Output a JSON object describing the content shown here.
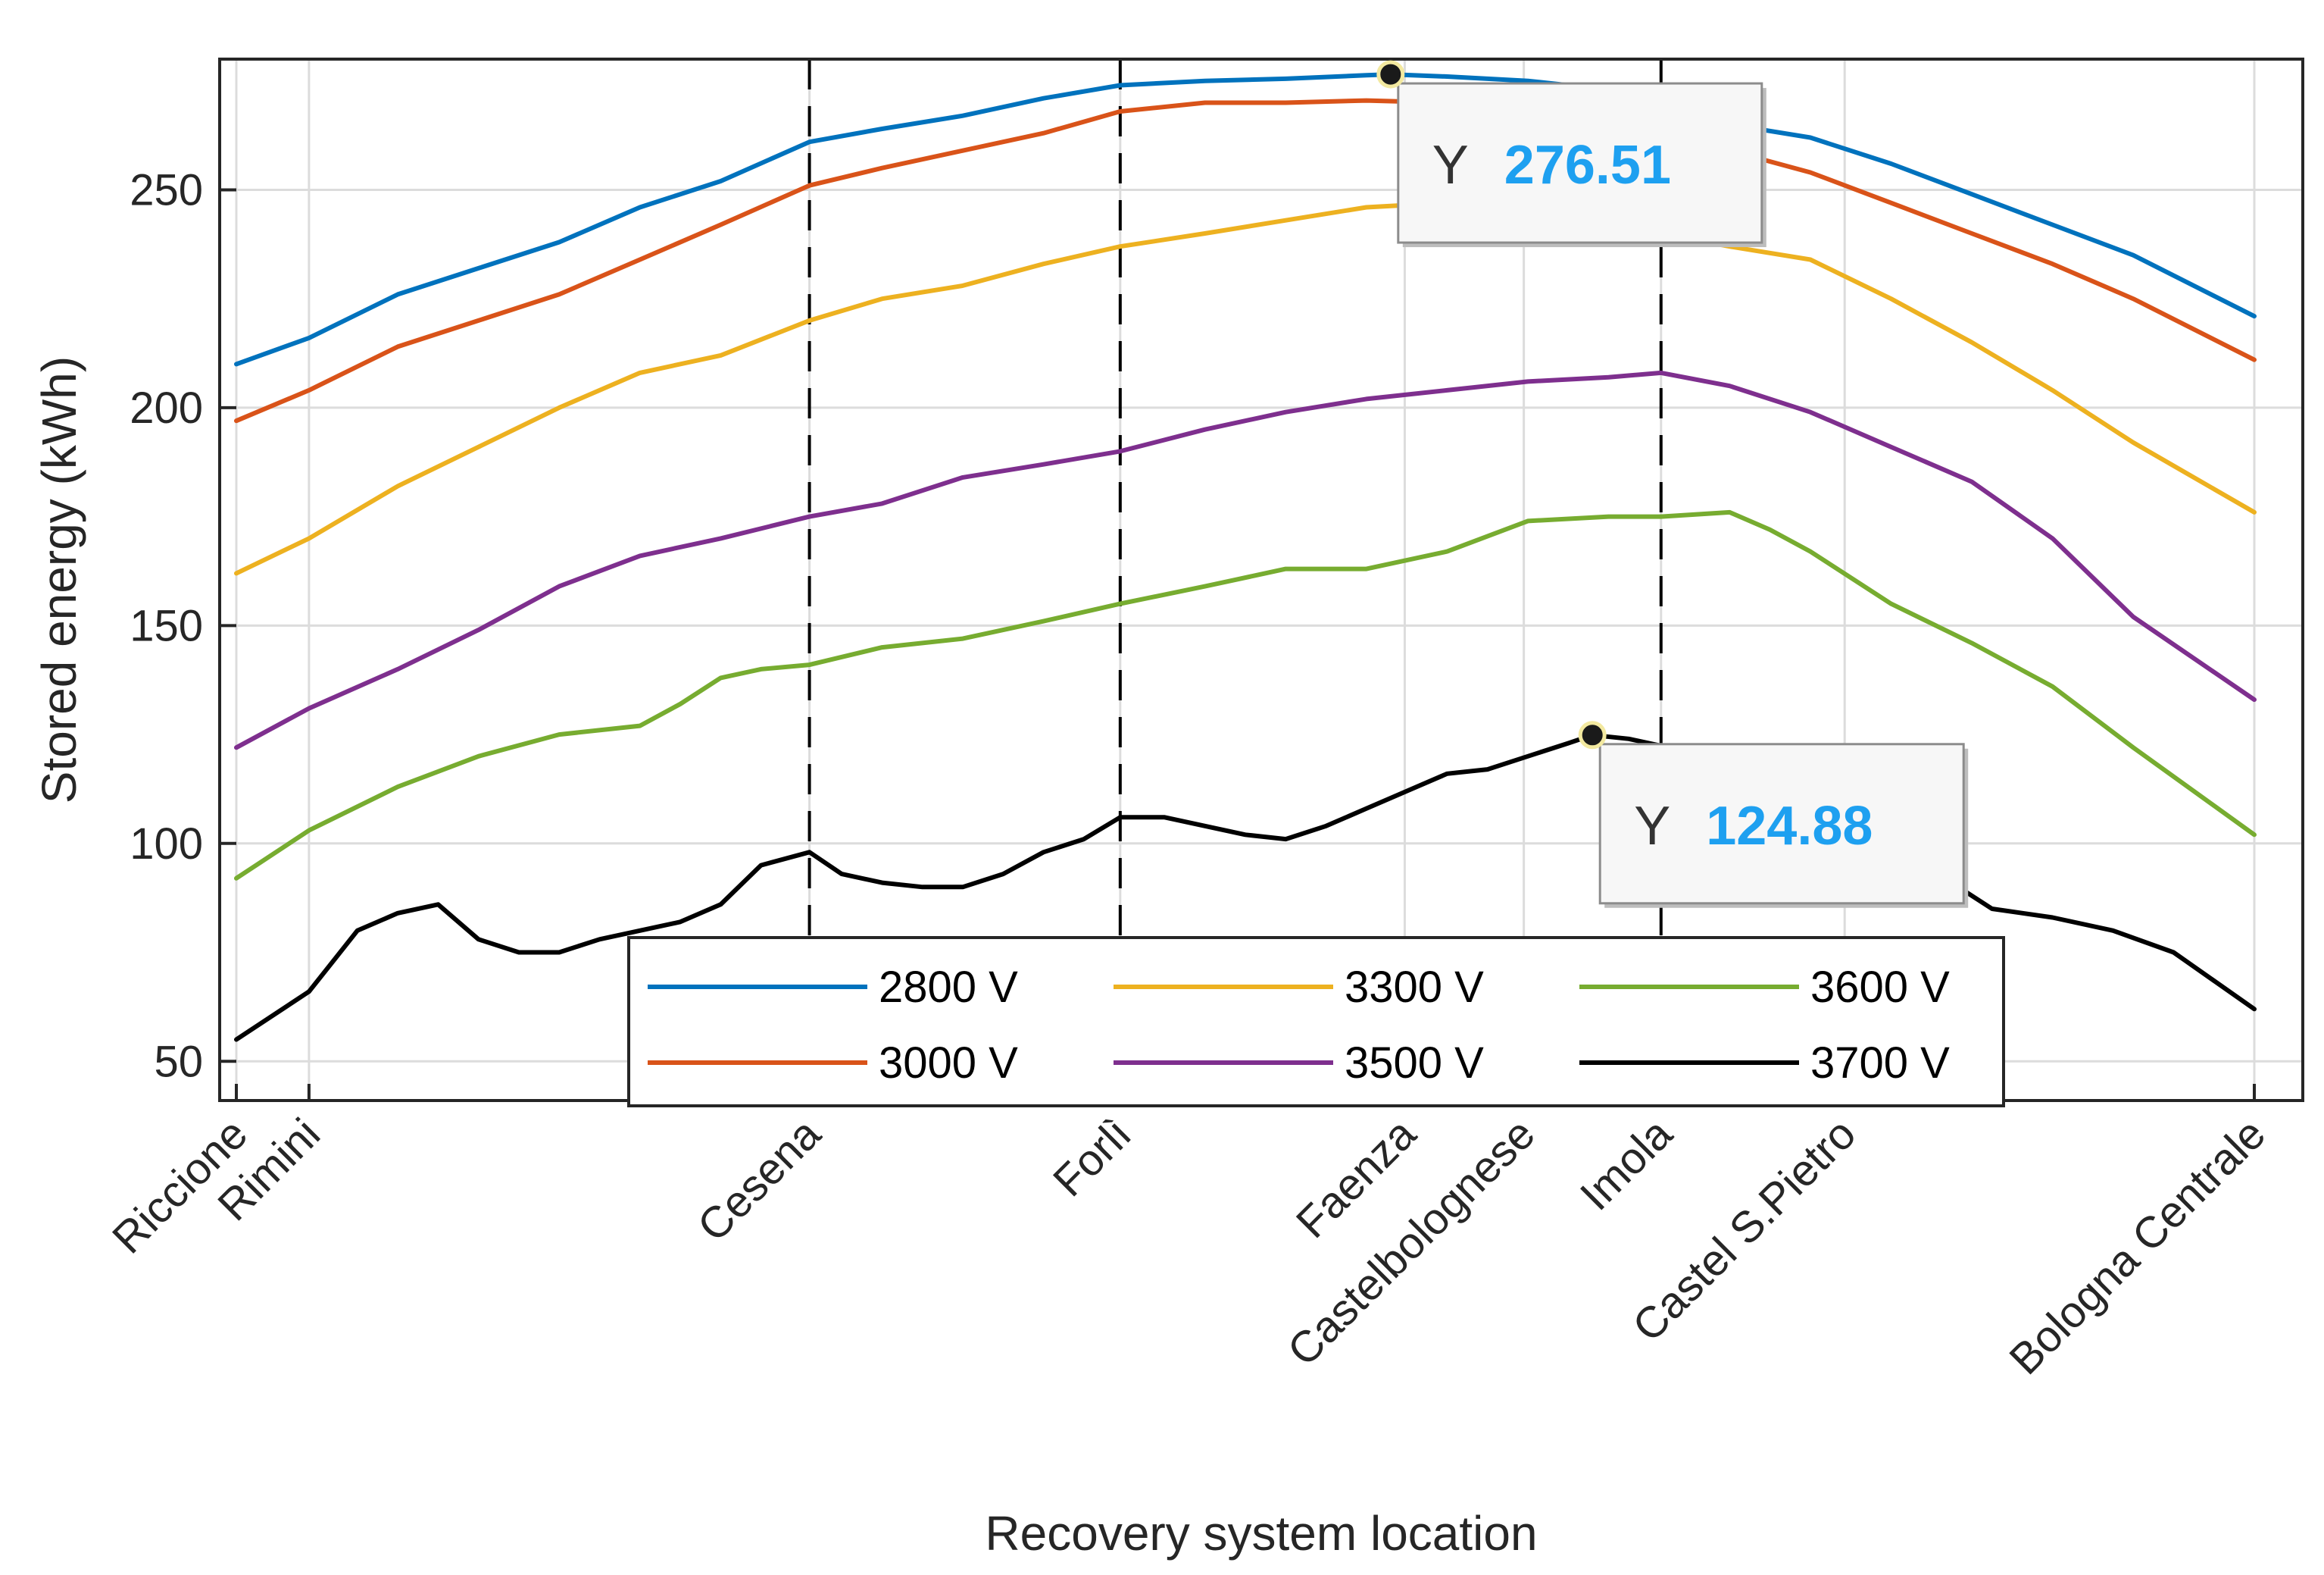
{
  "chart_data": {
    "type": "line",
    "xlabel": "Recovery system location",
    "ylabel": "Stored energy (kWh)",
    "xlim": [
      0,
      100
    ],
    "ylim": [
      41,
      280
    ],
    "yticks": [
      50,
      100,
      150,
      200,
      250
    ],
    "grid": true,
    "legend_position": "bottom-center",
    "locations": [
      {
        "name": "Riccione",
        "x": 0,
        "marker": false
      },
      {
        "name": "Rimini",
        "x": 3.6,
        "marker": false
      },
      {
        "name": "Cesena",
        "x": 28.4,
        "marker": true
      },
      {
        "name": "Forlì",
        "x": 43.8,
        "marker": true
      },
      {
        "name": "Faenza",
        "x": 57.9,
        "marker": false
      },
      {
        "name": "Castelbolognese",
        "x": 63.8,
        "marker": false
      },
      {
        "name": "Imola",
        "x": 70.6,
        "marker": true
      },
      {
        "name": "Castel S.Pietro",
        "x": 79.7,
        "marker": false
      },
      {
        "name": "Bologna Centrale",
        "x": 100,
        "marker": false
      }
    ],
    "series": [
      {
        "name": "2800 V",
        "color": "#0072bd",
        "points": [
          [
            0,
            210
          ],
          [
            3.6,
            216
          ],
          [
            8,
            226
          ],
          [
            12,
            232
          ],
          [
            16,
            238
          ],
          [
            20,
            246
          ],
          [
            24,
            252
          ],
          [
            28.4,
            261
          ],
          [
            32,
            264
          ],
          [
            36,
            267
          ],
          [
            40,
            271
          ],
          [
            43.8,
            274
          ],
          [
            48,
            275
          ],
          [
            52,
            275.5
          ],
          [
            56,
            276.3
          ],
          [
            57.2,
            276.51
          ],
          [
            60,
            276
          ],
          [
            64,
            275
          ],
          [
            68,
            273
          ],
          [
            70.6,
            270
          ],
          [
            74,
            265
          ],
          [
            78,
            262
          ],
          [
            82,
            256
          ],
          [
            86,
            249
          ],
          [
            90,
            242
          ],
          [
            94,
            235
          ],
          [
            100,
            221
          ]
        ]
      },
      {
        "name": "3000 V",
        "color": "#d95319",
        "points": [
          [
            0,
            197
          ],
          [
            3.6,
            204
          ],
          [
            8,
            214
          ],
          [
            12,
            220
          ],
          [
            16,
            226
          ],
          [
            20,
            234
          ],
          [
            24,
            242
          ],
          [
            28.4,
            251
          ],
          [
            32,
            255
          ],
          [
            36,
            259
          ],
          [
            40,
            263
          ],
          [
            43.8,
            268
          ],
          [
            48,
            270
          ],
          [
            52,
            270
          ],
          [
            56,
            270.5
          ],
          [
            60,
            270
          ],
          [
            64,
            269
          ],
          [
            68,
            266
          ],
          [
            70.6,
            263
          ],
          [
            74,
            259
          ],
          [
            78,
            254
          ],
          [
            82,
            247
          ],
          [
            86,
            240
          ],
          [
            90,
            233
          ],
          [
            94,
            225
          ],
          [
            100,
            211
          ]
        ]
      },
      {
        "name": "3300 V",
        "color": "#edb120",
        "points": [
          [
            0,
            162
          ],
          [
            3.6,
            170
          ],
          [
            8,
            182
          ],
          [
            12,
            191
          ],
          [
            16,
            200
          ],
          [
            20,
            208
          ],
          [
            24,
            212
          ],
          [
            28.4,
            220
          ],
          [
            32,
            225
          ],
          [
            36,
            228
          ],
          [
            40,
            233
          ],
          [
            43.8,
            237
          ],
          [
            48,
            240
          ],
          [
            52,
            243
          ],
          [
            56,
            246
          ],
          [
            60,
            247
          ],
          [
            64,
            246
          ],
          [
            68,
            244
          ],
          [
            70.6,
            240
          ],
          [
            74,
            237
          ],
          [
            78,
            234
          ],
          [
            82,
            225
          ],
          [
            86,
            215
          ],
          [
            90,
            204
          ],
          [
            94,
            192
          ],
          [
            100,
            176
          ]
        ]
      },
      {
        "name": "3500 V",
        "color": "#7e2f8e",
        "points": [
          [
            0,
            122
          ],
          [
            3.6,
            131
          ],
          [
            8,
            140
          ],
          [
            12,
            149
          ],
          [
            16,
            159
          ],
          [
            20,
            166
          ],
          [
            24,
            170
          ],
          [
            28.4,
            175
          ],
          [
            32,
            178
          ],
          [
            36,
            184
          ],
          [
            40,
            187
          ],
          [
            43.8,
            190
          ],
          [
            48,
            195
          ],
          [
            52,
            199
          ],
          [
            56,
            202
          ],
          [
            60,
            204
          ],
          [
            64,
            206
          ],
          [
            68,
            207
          ],
          [
            70.6,
            208
          ],
          [
            74,
            205
          ],
          [
            78,
            199
          ],
          [
            82,
            191
          ],
          [
            86,
            183
          ],
          [
            90,
            170
          ],
          [
            94,
            152
          ],
          [
            100,
            133
          ]
        ]
      },
      {
        "name": "3600 V",
        "color": "#77ac30",
        "points": [
          [
            0,
            92
          ],
          [
            3.6,
            103
          ],
          [
            8,
            113
          ],
          [
            12,
            120
          ],
          [
            16,
            125
          ],
          [
            20,
            127
          ],
          [
            22,
            132
          ],
          [
            24,
            138
          ],
          [
            26,
            140
          ],
          [
            28.4,
            141
          ],
          [
            32,
            145
          ],
          [
            36,
            147
          ],
          [
            40,
            151
          ],
          [
            43.8,
            155
          ],
          [
            48,
            159
          ],
          [
            52,
            163
          ],
          [
            56,
            163
          ],
          [
            60,
            167
          ],
          [
            64,
            174
          ],
          [
            68,
            175
          ],
          [
            70.6,
            175
          ],
          [
            74,
            176
          ],
          [
            76,
            172
          ],
          [
            78,
            167
          ],
          [
            82,
            155
          ],
          [
            86,
            146
          ],
          [
            90,
            136
          ],
          [
            94,
            122
          ],
          [
            100,
            102
          ]
        ]
      },
      {
        "name": "3700 V",
        "color": "#000000",
        "points": [
          [
            0,
            55
          ],
          [
            3.6,
            66
          ],
          [
            6,
            80
          ],
          [
            8,
            84
          ],
          [
            10,
            86
          ],
          [
            12,
            78
          ],
          [
            14,
            75
          ],
          [
            16,
            75
          ],
          [
            18,
            78
          ],
          [
            20,
            80
          ],
          [
            22,
            82
          ],
          [
            24,
            86
          ],
          [
            26,
            95
          ],
          [
            28.4,
            98
          ],
          [
            30,
            93
          ],
          [
            32,
            91
          ],
          [
            34,
            90
          ],
          [
            36,
            90
          ],
          [
            38,
            93
          ],
          [
            40,
            98
          ],
          [
            42,
            101
          ],
          [
            43.8,
            106
          ],
          [
            46,
            106
          ],
          [
            48,
            104
          ],
          [
            50,
            102
          ],
          [
            52,
            101
          ],
          [
            54,
            104
          ],
          [
            56,
            108
          ],
          [
            58,
            112
          ],
          [
            60,
            116
          ],
          [
            62,
            117
          ],
          [
            64,
            120
          ],
          [
            66,
            123
          ],
          [
            67.2,
            124.88
          ],
          [
            69,
            124
          ],
          [
            71,
            122
          ],
          [
            73,
            120
          ],
          [
            75,
            122
          ],
          [
            77,
            117
          ],
          [
            79,
            113
          ],
          [
            81,
            106
          ],
          [
            84,
            94
          ],
          [
            87,
            85
          ],
          [
            90,
            83
          ],
          [
            93,
            80
          ],
          [
            96,
            75
          ],
          [
            100,
            62
          ]
        ]
      }
    ],
    "datatips": [
      {
        "x": 57.2,
        "y": 276.51,
        "prefix": "Y",
        "value": "276.51"
      },
      {
        "x": 67.2,
        "y": 124.88,
        "prefix": "Y",
        "value": "124.88"
      }
    ]
  }
}
